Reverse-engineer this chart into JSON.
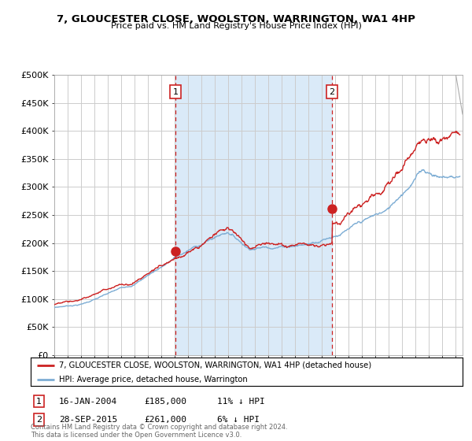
{
  "title": "7, GLOUCESTER CLOSE, WOOLSTON, WARRINGTON, WA1 4HP",
  "subtitle": "Price paid vs. HM Land Registry's House Price Index (HPI)",
  "ylabel_ticks": [
    "£0",
    "£50K",
    "£100K",
    "£150K",
    "£200K",
    "£250K",
    "£300K",
    "£350K",
    "£400K",
    "£450K",
    "£500K"
  ],
  "ytick_values": [
    0,
    50000,
    100000,
    150000,
    200000,
    250000,
    300000,
    350000,
    400000,
    450000,
    500000
  ],
  "xlim_start": 1995.0,
  "xlim_end": 2025.5,
  "ylim": [
    0,
    500000
  ],
  "sale1_year": 2004.04,
  "sale1_price": 185000,
  "sale2_year": 2015.75,
  "sale2_price": 261000,
  "hpi_color": "#7dadd4",
  "price_color": "#cc2222",
  "vline_color": "#cc2222",
  "shade_color": "#daeaf8",
  "legend_house": "7, GLOUCESTER CLOSE, WOOLSTON, WARRINGTON, WA1 4HP (detached house)",
  "legend_hpi": "HPI: Average price, detached house, Warrington",
  "footnote": "Contains HM Land Registry data © Crown copyright and database right 2024.\nThis data is licensed under the Open Government Licence v3.0.",
  "background_color": "#ffffff",
  "plot_bg_color": "#ffffff",
  "grid_color": "#cccccc"
}
